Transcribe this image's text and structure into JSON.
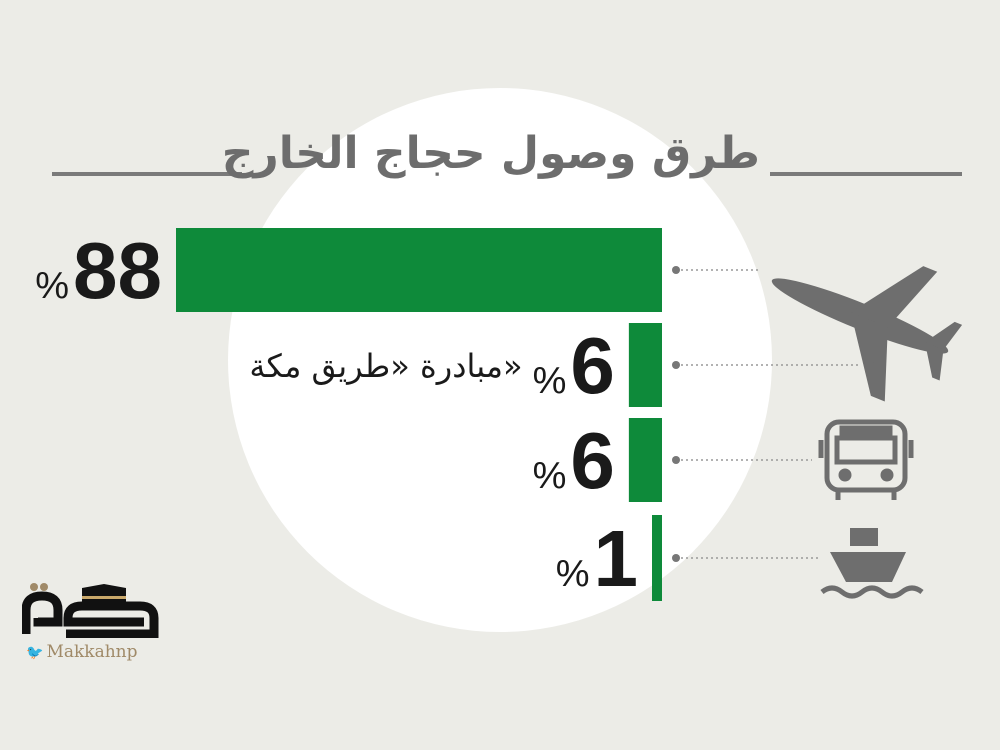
{
  "chart_data": {
    "type": "bar",
    "orientation": "horizontal",
    "title": "طرق وصول حجاج الخارج",
    "categories": [
      {
        "icon": "airplane-icon",
        "label": ""
      },
      {
        "icon": "",
        "label": "مبادرة «طريق مكة»"
      },
      {
        "icon": "bus-icon",
        "label": ""
      },
      {
        "icon": "ship-icon",
        "label": ""
      }
    ],
    "values": [
      88,
      6,
      6,
      1
    ],
    "unit": "%",
    "xlim": [
      0,
      88
    ],
    "grid": false,
    "bar_color": "#0e8a3a"
  },
  "branding": {
    "logo_text": "مكة",
    "twitter_handle": "Makkahnp"
  },
  "colors": {
    "background": "#ecece7",
    "circle": "#ffffff",
    "text": "#1a1a1a",
    "accent": "#0e8a3a"
  }
}
